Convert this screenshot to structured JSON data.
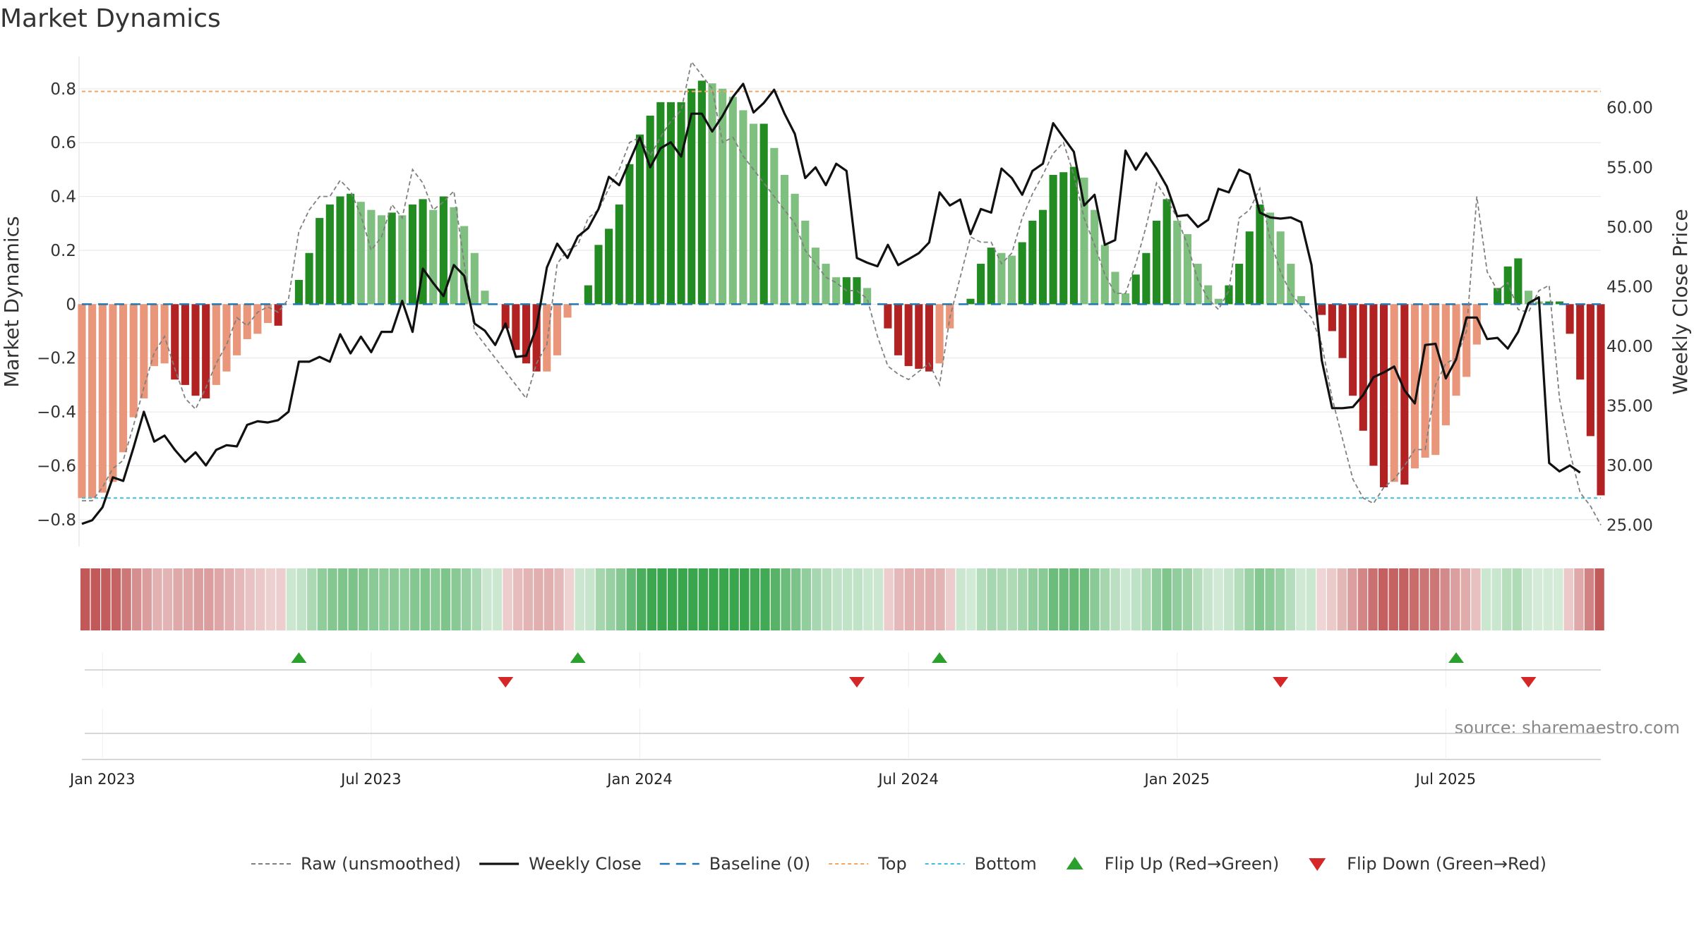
{
  "chart_data": {
    "type": "bar",
    "title": "Market Dynamics",
    "ylabel_left": "Market Dynamics",
    "ylabel_right": "Weekly Close Price",
    "source": "source: sharemaestro.com",
    "ylim_left": [
      -0.9,
      0.92
    ],
    "ylim_right": [
      23.2,
      64.3
    ],
    "yticks_left": [
      {
        "v": 0.8,
        "label": "0.8"
      },
      {
        "v": 0.6,
        "label": "0.6"
      },
      {
        "v": 0.4,
        "label": "0.4"
      },
      {
        "v": 0.2,
        "label": "0.2"
      },
      {
        "v": 0,
        "label": "0"
      },
      {
        "v": -0.2,
        "label": "−0.2"
      },
      {
        "v": -0.4,
        "label": "−0.4"
      },
      {
        "v": -0.6,
        "label": "−0.6"
      },
      {
        "v": -0.8,
        "label": "−0.8"
      }
    ],
    "yticks_right": [
      {
        "v": 60,
        "label": "60.00"
      },
      {
        "v": 55,
        "label": "55.00"
      },
      {
        "v": 50,
        "label": "50.00"
      },
      {
        "v": 45,
        "label": "45.00"
      },
      {
        "v": 40,
        "label": "40.00"
      },
      {
        "v": 35,
        "label": "35.00"
      },
      {
        "v": 30,
        "label": "30.00"
      },
      {
        "v": 25,
        "label": "25.00"
      }
    ],
    "x_ticks": [
      {
        "index": 2,
        "label": "Jan 2023"
      },
      {
        "index": 28,
        "label": "Jul 2023"
      },
      {
        "index": 54,
        "label": "Jan 2024"
      },
      {
        "index": 80,
        "label": "Jul 2024"
      },
      {
        "index": 106,
        "label": "Jan 2025"
      },
      {
        "index": 132,
        "label": "Jul 2025"
      }
    ],
    "top_level": 0.79,
    "bottom_level": -0.72,
    "baseline": 0,
    "grid": true,
    "legend_position": "bottom",
    "colors": {
      "strong_red": "#b22222",
      "light_red": "#e9967a",
      "strong_green": "#228b22",
      "light_green": "#7fbf7f",
      "close_line": "#111111",
      "raw_line": "#808080",
      "baseline": "#1f77b4",
      "top": "#f4a460",
      "bottom": "#40c0d8",
      "flip_up": "#2ca02c",
      "flip_down": "#d62728"
    },
    "series": [
      {
        "name": "Market Dynamics",
        "values": [
          -0.72,
          -0.72,
          -0.7,
          -0.66,
          -0.55,
          -0.42,
          -0.35,
          -0.23,
          -0.22,
          -0.28,
          -0.3,
          -0.34,
          -0.35,
          -0.3,
          -0.25,
          -0.19,
          -0.13,
          -0.11,
          -0.07,
          -0.08,
          0.0,
          0.09,
          0.19,
          0.32,
          0.37,
          0.4,
          0.41,
          0.38,
          0.35,
          0.33,
          0.34,
          0.33,
          0.37,
          0.39,
          0.35,
          0.4,
          0.36,
          0.29,
          0.19,
          0.05,
          0.0,
          -0.09,
          -0.17,
          -0.22,
          -0.25,
          -0.25,
          -0.19,
          -0.05,
          0.0,
          0.07,
          0.22,
          0.28,
          0.37,
          0.52,
          0.63,
          0.7,
          0.75,
          0.75,
          0.75,
          0.8,
          0.83,
          0.82,
          0.8,
          0.77,
          0.72,
          0.67,
          0.67,
          0.58,
          0.48,
          0.41,
          0.31,
          0.21,
          0.15,
          0.1,
          0.1,
          0.1,
          0.06,
          0.0,
          -0.09,
          -0.19,
          -0.23,
          -0.24,
          -0.25,
          -0.22,
          -0.09,
          0.0,
          0.02,
          0.15,
          0.21,
          0.19,
          0.18,
          0.23,
          0.31,
          0.35,
          0.48,
          0.49,
          0.51,
          0.47,
          0.35,
          0.22,
          0.12,
          0.04,
          0.11,
          0.19,
          0.31,
          0.39,
          0.31,
          0.26,
          0.15,
          0.07,
          0.02,
          0.07,
          0.15,
          0.27,
          0.37,
          0.34,
          0.27,
          0.15,
          0.03,
          0.0,
          -0.04,
          -0.1,
          -0.2,
          -0.34,
          -0.47,
          -0.6,
          -0.68,
          -0.66,
          -0.67,
          -0.61,
          -0.57,
          -0.56,
          -0.45,
          -0.34,
          -0.27,
          -0.15,
          0.0,
          0.06,
          0.14,
          0.17,
          0.05,
          0.01,
          0.01,
          0.01,
          -0.11,
          -0.28,
          -0.49,
          -0.71
        ]
      },
      {
        "name": "Raw (unsmoothed)",
        "values": [
          -0.73,
          -0.73,
          -0.68,
          -0.61,
          -0.58,
          -0.45,
          -0.31,
          -0.18,
          -0.12,
          -0.24,
          -0.35,
          -0.39,
          -0.31,
          -0.22,
          -0.15,
          -0.05,
          -0.08,
          -0.03,
          -0.01,
          -0.03,
          0.02,
          0.27,
          0.35,
          0.4,
          0.4,
          0.46,
          0.42,
          0.33,
          0.2,
          0.25,
          0.37,
          0.32,
          0.5,
          0.45,
          0.35,
          0.38,
          0.42,
          0.15,
          -0.1,
          -0.15,
          -0.2,
          -0.25,
          -0.3,
          -0.35,
          -0.22,
          -0.15,
          0.15,
          0.2,
          0.22,
          0.32,
          0.35,
          0.43,
          0.5,
          0.6,
          0.62,
          0.55,
          0.62,
          0.68,
          0.72,
          0.9,
          0.85,
          0.8,
          0.6,
          0.62,
          0.55,
          0.5,
          0.45,
          0.4,
          0.35,
          0.3,
          0.2,
          0.15,
          0.1,
          0.08,
          0.05,
          0.05,
          0.02,
          -0.12,
          -0.23,
          -0.26,
          -0.28,
          -0.25,
          -0.22,
          -0.3,
          -0.05,
          0.1,
          0.25,
          0.23,
          0.23,
          0.15,
          0.19,
          0.32,
          0.41,
          0.48,
          0.56,
          0.6,
          0.48,
          0.32,
          0.22,
          0.11,
          0.04,
          0.04,
          0.15,
          0.29,
          0.45,
          0.39,
          0.32,
          0.22,
          0.09,
          0.02,
          -0.02,
          0.05,
          0.32,
          0.35,
          0.43,
          0.24,
          0.12,
          0.04,
          -0.01,
          -0.05,
          -0.15,
          -0.35,
          -0.5,
          -0.65,
          -0.72,
          -0.74,
          -0.68,
          -0.65,
          -0.6,
          -0.54,
          -0.54,
          -0.3,
          -0.22,
          -0.2,
          -0.1,
          0.4,
          0.12,
          0.05,
          0.08,
          -0.02,
          -0.03,
          0.05,
          0.07,
          -0.35,
          -0.55,
          -0.7,
          -0.75,
          -0.82
        ]
      },
      {
        "name": "Weekly Close",
        "values": [
          25.1,
          25.4,
          26.5,
          29.0,
          28.7,
          31.5,
          34.5,
          32.0,
          32.5,
          31.3,
          30.3,
          31.1,
          30.0,
          31.3,
          31.7,
          31.6,
          33.4,
          33.7,
          33.6,
          33.8,
          34.5,
          38.7,
          38.7,
          39.1,
          38.7,
          41.0,
          39.4,
          40.8,
          39.5,
          41.2,
          41.2,
          43.8,
          41.2,
          46.5,
          45.3,
          44.2,
          46.8,
          45.9,
          41.9,
          41.3,
          40.1,
          41.9,
          39.1,
          39.2,
          41.6,
          46.6,
          48.6,
          47.4,
          49.2,
          49.9,
          51.5,
          54.2,
          53.5,
          55.5,
          57.5,
          55.0,
          56.6,
          57.1,
          55.9,
          59.5,
          59.5,
          58.0,
          59.3,
          60.9,
          62.0,
          59.6,
          60.4,
          61.5,
          59.5,
          57.8,
          54.1,
          55.0,
          53.5,
          55.3,
          54.7,
          47.4,
          47.0,
          46.7,
          48.5,
          46.8,
          47.3,
          47.8,
          48.7,
          52.9,
          51.8,
          52.3,
          49.4,
          51.5,
          51.2,
          54.9,
          54.1,
          52.7,
          54.7,
          55.3,
          58.7,
          57.5,
          56.3,
          51.8,
          52.7,
          48.5,
          48.9,
          56.4,
          54.8,
          56.2,
          54.9,
          53.4,
          50.9,
          51.0,
          50.0,
          50.6,
          53.2,
          52.9,
          54.8,
          54.4,
          51.2,
          50.8,
          50.7,
          50.8,
          50.4,
          46.8,
          38.8,
          34.8,
          34.8,
          34.9,
          35.9,
          37.4,
          37.8,
          38.3,
          36.3,
          35.2,
          40.1,
          40.2,
          37.3,
          38.9,
          42.4,
          42.4,
          40.6,
          40.7,
          39.8,
          41.2,
          43.6,
          44.1,
          30.2,
          29.5,
          30.0,
          29.4
        ]
      }
    ],
    "flips": [
      {
        "index": 21,
        "direction": "up"
      },
      {
        "index": 41,
        "direction": "down"
      },
      {
        "index": 48,
        "direction": "up"
      },
      {
        "index": 75,
        "direction": "down"
      },
      {
        "index": 83,
        "direction": "up"
      },
      {
        "index": 116,
        "direction": "down"
      },
      {
        "index": 133,
        "direction": "up"
      },
      {
        "index": 140,
        "direction": "down"
      }
    ],
    "legend": [
      {
        "key": "raw",
        "label": "Raw (unsmoothed)"
      },
      {
        "key": "close",
        "label": "Weekly Close"
      },
      {
        "key": "baseline",
        "label": "Baseline (0)"
      },
      {
        "key": "top",
        "label": "Top"
      },
      {
        "key": "bottom",
        "label": "Bottom"
      },
      {
        "key": "flip_up",
        "label": "Flip Up (Red→Green)"
      },
      {
        "key": "flip_down",
        "label": "Flip Down (Green→Red)"
      }
    ]
  }
}
